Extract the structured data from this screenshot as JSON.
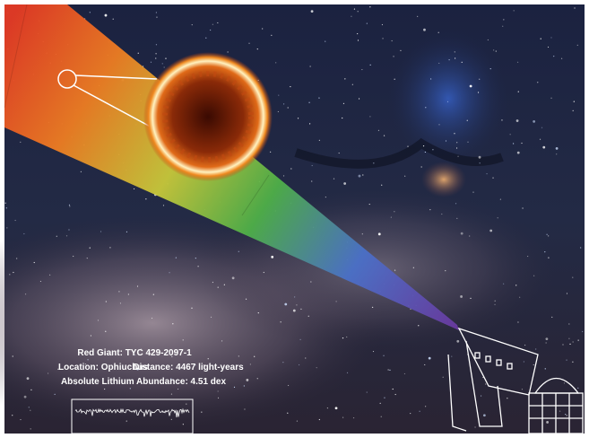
{
  "caption": {
    "star": "Red Giant: TYC 429-2097-1",
    "location": "Location: Ophiuchus",
    "distance": "Distance: 4467 light-years",
    "abundance": "Absolute Lithium Abundance: 4.51 dex"
  }
}
